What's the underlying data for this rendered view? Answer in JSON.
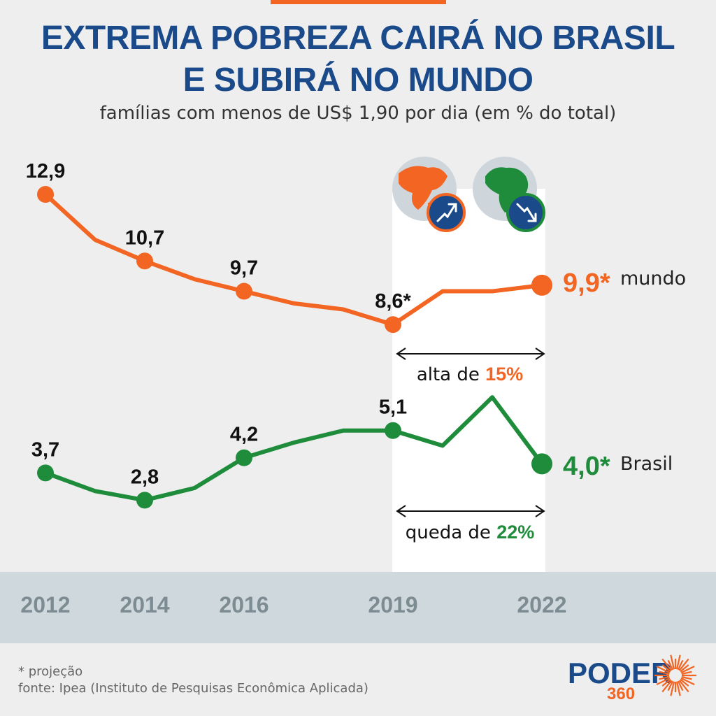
{
  "colors": {
    "mundo": "#f26522",
    "brasil": "#1e8c3a",
    "title": "#1a4a8a",
    "axis_band": "#cfd8dc",
    "highlight": "#ffffff"
  },
  "header": {
    "title_line1": "EXTREMA POBREZA CAIRÁ NO BRASIL",
    "title_line2": "E SUBIRÁ NO MUNDO",
    "subtitle": "famílias com menos de US$ 1,90 por dia (em % do total)"
  },
  "chart_data": {
    "type": "line",
    "title": "EXTREMA POBREZA CAIRÁ NO BRASIL E SUBIRÁ NO MUNDO",
    "subtitle": "famílias com menos de US$ 1,90 por dia (em % do total)",
    "xlabel": "",
    "ylabel": "% do total",
    "x": [
      2012,
      2013,
      2014,
      2015,
      2016,
      2017,
      2018,
      2019,
      2020,
      2021,
      2022
    ],
    "xlim": [
      2012,
      2022
    ],
    "ylim": [
      2.8,
      12.9
    ],
    "x_tick_labels": [
      "2012",
      "2014",
      "2016",
      "2019",
      "2022"
    ],
    "x_ticks": [
      2012,
      2014,
      2016,
      2019,
      2022
    ],
    "series": [
      {
        "name": "mundo",
        "values": [
          12.9,
          11.4,
          10.7,
          10.1,
          9.7,
          9.3,
          9.1,
          8.6,
          9.7,
          9.7,
          9.9
        ],
        "labels": [
          {
            "x": 2012,
            "text": "12,9"
          },
          {
            "x": 2014,
            "text": "10,7"
          },
          {
            "x": 2016,
            "text": "9,7"
          },
          {
            "x": 2019,
            "text": "8,6*"
          }
        ],
        "end_value": "9,9*",
        "end_name": "mundo"
      },
      {
        "name": "Brasil",
        "values": [
          3.7,
          3.1,
          2.8,
          3.2,
          4.2,
          4.7,
          5.1,
          5.1,
          4.6,
          6.2,
          4.0
        ],
        "labels": [
          {
            "x": 2012,
            "text": "3,7"
          },
          {
            "x": 2014,
            "text": "2,8"
          },
          {
            "x": 2016,
            "text": "4,2"
          },
          {
            "x": 2019,
            "text": "5,1"
          }
        ],
        "end_value": "4,0*",
        "end_name": "Brasil"
      }
    ],
    "annotations": [
      {
        "series": "mundo",
        "prefix": "alta de ",
        "value": "15%",
        "from": 2019,
        "to": 2022
      },
      {
        "series": "Brasil",
        "prefix": "queda de ",
        "value": "22%",
        "from": 2019,
        "to": 2022
      }
    ],
    "projection_from": 2019
  },
  "footer": {
    "note": "* projeção",
    "source": "fonte: Ipea (Instituto de Pesquisas Econômica Aplicada)"
  },
  "brand": {
    "name": "PODER",
    "number": "360",
    "icon": "sunburst-logo-icon"
  },
  "icons": {
    "world_up": "globe-trend-up-icon",
    "brazil_down": "brazil-trend-down-icon"
  }
}
